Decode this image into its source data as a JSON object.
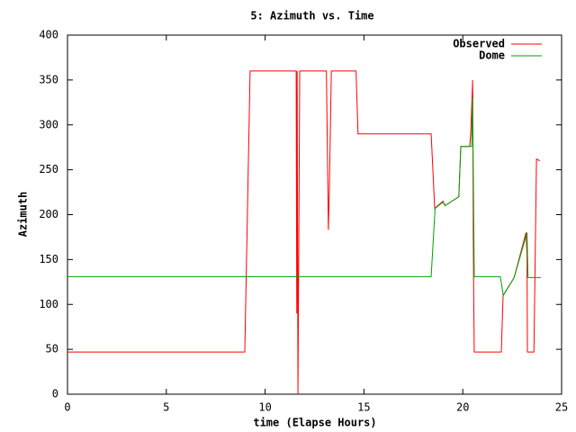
{
  "chart_data": {
    "type": "line",
    "title": "5: Azimuth vs. Time",
    "x_label": "time (Elapse Hours)",
    "y_label": "Azimuth",
    "xlim": [
      0,
      25
    ],
    "xticks": [
      0,
      5,
      10,
      15,
      20,
      25
    ],
    "ylim": [
      0,
      400
    ],
    "yticks": [
      0,
      50,
      100,
      150,
      200,
      250,
      300,
      350,
      400
    ],
    "legend": "top right",
    "series": [
      {
        "name": "Observed",
        "color": "#ff0000",
        "x": [
          0,
          8.97,
          9.24,
          11.57,
          11.6,
          11.62,
          11.66,
          11.75,
          13.1,
          13.2,
          13.25,
          13.35,
          14.6,
          14.7,
          18.4,
          18.58,
          19.0,
          19.1,
          19.8,
          19.9,
          20.35,
          20.4,
          20.5,
          20.53,
          20.55,
          20.58,
          21.95,
          22.04,
          22.6,
          23.2,
          23.25,
          23.27,
          23.6,
          23.73,
          23.9
        ],
        "values": [
          47,
          47,
          360,
          360,
          90,
          360,
          0,
          360,
          360,
          183,
          230,
          360,
          360,
          290,
          290,
          207,
          215,
          210,
          220,
          276,
          276,
          290,
          350,
          183,
          120,
          47,
          47,
          110,
          130,
          180,
          155,
          47,
          47,
          262,
          260
        ]
      },
      {
        "name": "Dome",
        "color": "#00a000",
        "x": [
          0,
          18.4,
          18.6,
          19.0,
          19.1,
          19.8,
          19.9,
          20.45,
          20.48,
          20.52,
          20.58,
          21.9,
          22.05,
          22.6,
          23.25,
          23.3,
          23.95
        ],
        "values": [
          131,
          131,
          207,
          214,
          210,
          220,
          276,
          276,
          330,
          276,
          131,
          131,
          110,
          130,
          180,
          130,
          130
        ]
      }
    ]
  }
}
